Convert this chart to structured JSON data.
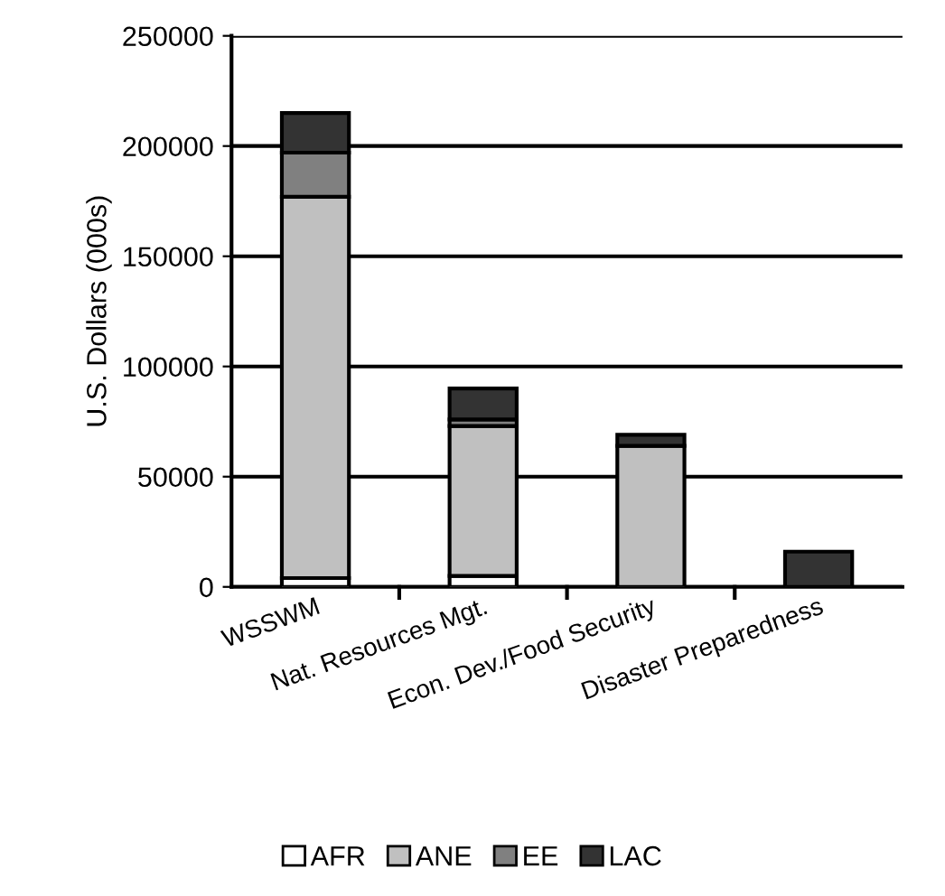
{
  "chart_data": {
    "type": "bar",
    "stacked": true,
    "ylabel": "U.S. Dollars (000s)",
    "categories": [
      "WSSWM",
      "Nat. Resources Mgt.",
      "Econ. Dev./Food Security",
      "Disaster Preparedness"
    ],
    "series": [
      {
        "name": "AFR",
        "color": "#ffffff",
        "values": [
          4000,
          5000,
          null,
          0
        ]
      },
      {
        "name": "ANE",
        "color": "#c0c0c0",
        "values": [
          173000,
          68000,
          64000,
          0
        ]
      },
      {
        "name": "EE",
        "color": "#808080",
        "values": [
          20000,
          3000,
          0,
          0
        ]
      },
      {
        "name": "LAC",
        "color": "#333333",
        "values": [
          18000,
          14000,
          5000,
          16000
        ]
      }
    ],
    "ylim": [
      0,
      250000
    ],
    "yticks": [
      0,
      50000,
      100000,
      150000,
      200000,
      250000
    ],
    "grid": "y",
    "legend": "bottom"
  }
}
